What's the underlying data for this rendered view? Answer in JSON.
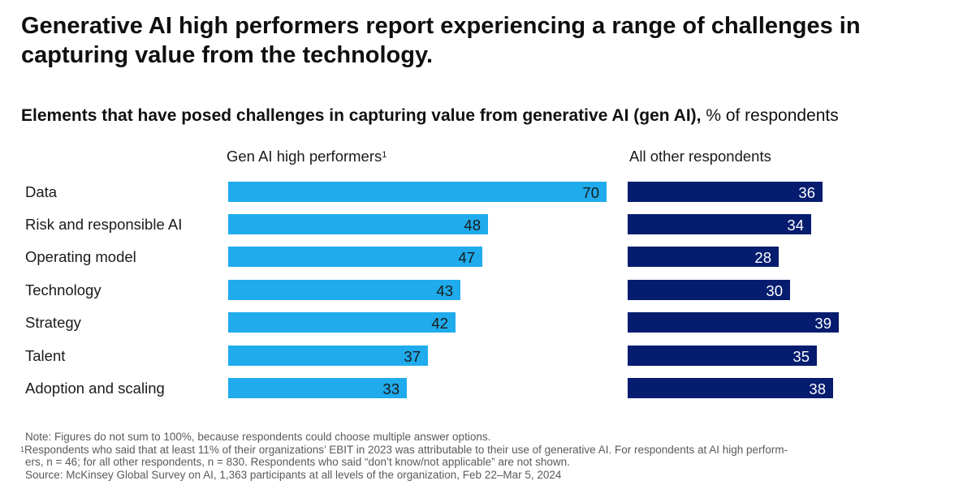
{
  "title": "Generative AI high performers report experiencing a range of challenges in capturing value from the technology.",
  "chart_data": {
    "type": "bar",
    "orientation": "horizontal",
    "subtitle_bold": "Elements that have posed challenges in capturing value from generative AI (gen AI),",
    "subtitle_regular": " % of respondents",
    "categories": [
      "Data",
      "Risk and responsible AI",
      "Operating model",
      "Technology",
      "Strategy",
      "Talent",
      "Adoption and scaling"
    ],
    "series": [
      {
        "name": "Gen AI high performers",
        "footnote_mark": "1",
        "color": "#1fabec",
        "values": [
          70,
          48,
          47,
          43,
          42,
          37,
          33
        ]
      },
      {
        "name": "All other respondents",
        "color": "#051c6f",
        "values": [
          36,
          34,
          28,
          30,
          39,
          35,
          38
        ]
      }
    ],
    "xlim": [
      0,
      70
    ]
  },
  "notes": {
    "note": "Note: Figures do not sum to 100%, because respondents could choose multiple answer options.",
    "footnote_mark": "1",
    "footnote_line1": "Respondents who said that at least 11% of their organizations’ EBIT in 2023 was attributable to their use of generative AI. For respondents at AI high perform-",
    "footnote_line2": "ers, n = 46; for all other respondents, n = 830. Respondents who said “don’t know/not applicable” are not shown.",
    "source": "Source: McKinsey Global Survey on AI, 1,363 participants at all levels of the organization, Feb 22–Mar 5, 2024"
  }
}
